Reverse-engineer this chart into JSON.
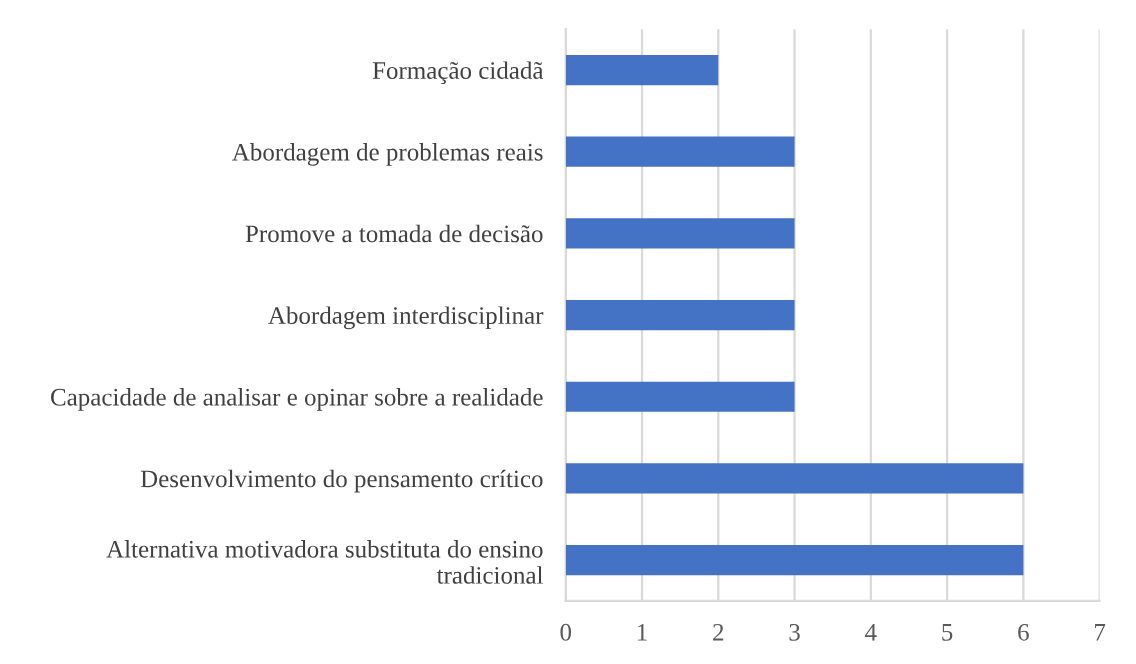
{
  "chart_data": {
    "type": "bar",
    "orientation": "horizontal",
    "categories": [
      "Formação cidadã",
      "Abordagem de problemas reais",
      "Promove a tomada de decisão",
      "Abordagem interdisciplinar",
      "Capacidade de analisar e opinar sobre a realidade",
      "Desenvolvimento do pensamento crítico",
      "Alternativa motivadora substituta do ensino\ntradicional"
    ],
    "values": [
      2,
      3,
      3,
      3,
      3,
      6,
      6
    ],
    "color": "#4472c4",
    "xlim": [
      0,
      7
    ],
    "xticks": [
      0,
      1,
      2,
      3,
      4,
      5,
      6,
      7
    ],
    "grid": "x",
    "legend": false
  }
}
